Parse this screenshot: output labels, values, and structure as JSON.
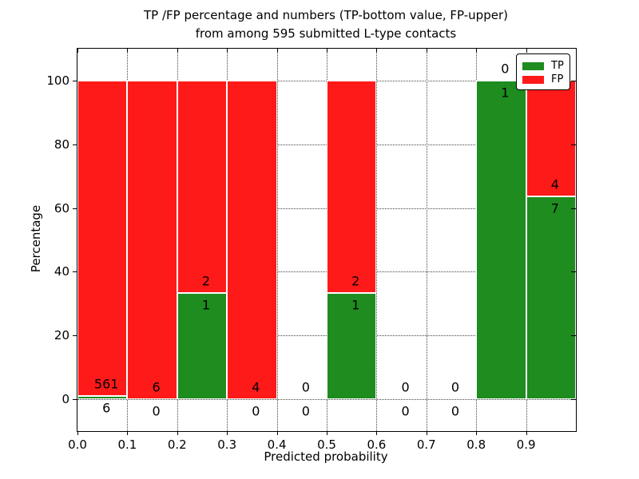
{
  "chart_data": {
    "type": "bar",
    "subtype": "stacked-percentage",
    "title_line1": "TP /FP percentage and numbers (TP-bottom value, FP-upper)",
    "title_line2": "from among 595 submitted L-type contacts",
    "xlabel": "Predicted probability",
    "ylabel": "Percentage",
    "xlim": [
      0,
      1.0
    ],
    "ylim": [
      -10,
      110
    ],
    "grid": "dotted",
    "x_ticks": [
      {
        "value": 0.0,
        "label": "0.0"
      },
      {
        "value": 0.1,
        "label": "0.1"
      },
      {
        "value": 0.2,
        "label": "0.2"
      },
      {
        "value": 0.3,
        "label": "0.3"
      },
      {
        "value": 0.4,
        "label": "0.4"
      },
      {
        "value": 0.5,
        "label": "0.5"
      },
      {
        "value": 0.6,
        "label": "0.6"
      },
      {
        "value": 0.7,
        "label": "0.7"
      },
      {
        "value": 0.8,
        "label": "0.8"
      },
      {
        "value": 0.9,
        "label": "0.9"
      }
    ],
    "y_ticks": [
      {
        "value": 0,
        "label": "0"
      },
      {
        "value": 20,
        "label": "20"
      },
      {
        "value": 40,
        "label": "40"
      },
      {
        "value": 60,
        "label": "60"
      },
      {
        "value": 80,
        "label": "80"
      },
      {
        "value": 100,
        "label": "100"
      }
    ],
    "legend": {
      "position": "upper-right",
      "items": [
        {
          "label": "TP",
          "color": "#1e8c1e"
        },
        {
          "label": "FP",
          "color": "#ff1a1a"
        }
      ]
    },
    "bins": [
      {
        "x_range": [
          0.0,
          0.1
        ],
        "tp": 6,
        "fp": 561
      },
      {
        "x_range": [
          0.1,
          0.2
        ],
        "tp": 0,
        "fp": 6
      },
      {
        "x_range": [
          0.2,
          0.3
        ],
        "tp": 1,
        "fp": 2
      },
      {
        "x_range": [
          0.3,
          0.4
        ],
        "tp": 0,
        "fp": 4
      },
      {
        "x_range": [
          0.4,
          0.5
        ],
        "tp": 0,
        "fp": 0
      },
      {
        "x_range": [
          0.5,
          0.6
        ],
        "tp": 1,
        "fp": 2
      },
      {
        "x_range": [
          0.6,
          0.7
        ],
        "tp": 0,
        "fp": 0
      },
      {
        "x_range": [
          0.7,
          0.8
        ],
        "tp": 0,
        "fp": 0
      },
      {
        "x_range": [
          0.8,
          0.9
        ],
        "tp": 1,
        "fp": 0
      },
      {
        "x_range": [
          0.9,
          1.0
        ],
        "tp": 7,
        "fp": 4
      }
    ]
  }
}
